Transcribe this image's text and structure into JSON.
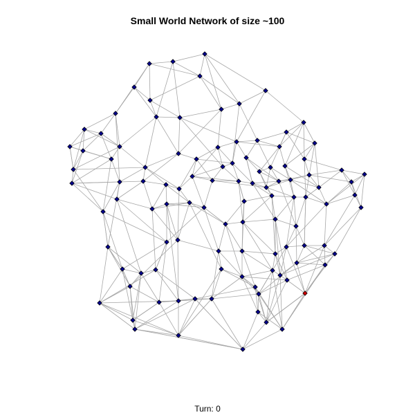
{
  "title": "Small World Network of size ~100",
  "turn_label": "Turn: 0",
  "colors": {
    "edge": "#a6a6a6",
    "node": "#00008b",
    "highlight_node": "#cc0000",
    "node_border": "#000000"
  }
}
